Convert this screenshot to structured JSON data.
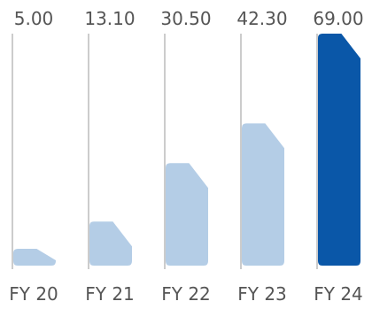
{
  "chart_data": {
    "type": "bar",
    "categories": [
      "FY 20",
      "FY 21",
      "FY 22",
      "FY 23",
      "FY 24"
    ],
    "values": [
      5.0,
      13.1,
      30.5,
      42.3,
      69.0
    ],
    "value_labels": [
      "5.00",
      "13.10",
      "30.50",
      "42.30",
      "69.00"
    ],
    "ylim": [
      0,
      69
    ],
    "grid": false,
    "colors": {
      "bar": "#b4cde6",
      "highlight": "#0a57a8",
      "axis_line": "#9a9a9a",
      "text": "#555555"
    },
    "highlight_index": 4
  }
}
